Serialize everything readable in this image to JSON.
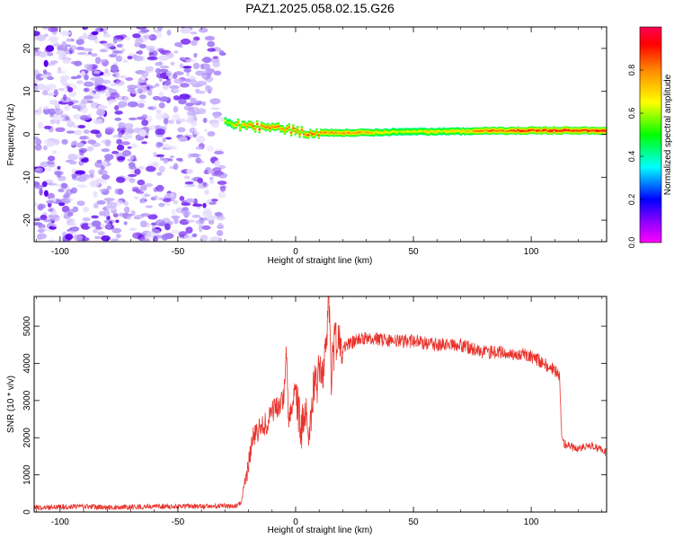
{
  "title": "PAZ1.2025.058.02.15.G26",
  "colors": {
    "snr_line": "#e8332c",
    "noise_scatter": [
      "#5a00ee",
      "#7d2ff2",
      "#a27cf5",
      "#c6b0fa",
      "#e6dcfd"
    ],
    "axis": "#000000"
  },
  "colorbar": {
    "label": "Normalized spectral amplitude",
    "ticks": [
      "0.0",
      "0.2",
      "0.4",
      "0.6",
      "0.8"
    ],
    "tick_values": [
      0.0,
      0.2,
      0.4,
      0.6,
      0.8
    ],
    "range": [
      0,
      1
    ],
    "colormap": "rainbow (magenta-blue-cyan-green-yellow-red)"
  },
  "chart_data": [
    {
      "type": "heatmap",
      "title": "PAZ1.2025.058.02.15.G26",
      "xlabel": "Height of straight line (km)",
      "ylabel": "Frequency (Hz)",
      "xlim": [
        -111,
        132
      ],
      "ylim": [
        -25,
        25
      ],
      "x_ticks": [
        -100,
        -50,
        0,
        50,
        100
      ],
      "x_tick_labels": [
        "-100",
        "-50",
        "0",
        "50",
        "100"
      ],
      "y_ticks": [
        -20,
        -10,
        0,
        10,
        20
      ],
      "y_tick_labels": [
        "-20",
        "-10",
        "0",
        "10",
        "20"
      ],
      "noise_region_x": [
        -111,
        -30
      ],
      "signal_ridge": {
        "x": [
          -30,
          -25,
          -20,
          -15,
          -10,
          -5,
          0,
          5,
          10,
          20,
          30,
          40,
          50,
          60,
          70,
          80,
          90,
          100,
          110,
          120,
          132
        ],
        "frequency": [
          2.5,
          2.3,
          2.0,
          1.8,
          1.2,
          1.5,
          0.8,
          0.5,
          0.4,
          0.3,
          0.4,
          0.5,
          0.6,
          0.6,
          0.7,
          0.8,
          0.8,
          0.9,
          0.9,
          0.9,
          0.9
        ],
        "amplitude": [
          0.65,
          0.8,
          0.85,
          0.9,
          0.9,
          0.85,
          0.9,
          0.9,
          0.85,
          0.85,
          0.8,
          0.7,
          0.7,
          0.72,
          0.75,
          0.88,
          0.9,
          0.95,
          0.98,
          0.98,
          0.98
        ]
      }
    },
    {
      "type": "line",
      "xlabel": "Height of straight line (km)",
      "ylabel": "SNR (10 * v/v)",
      "xlim": [
        -111,
        132
      ],
      "ylim": [
        0,
        5800
      ],
      "x_ticks": [
        -100,
        -50,
        0,
        50,
        100
      ],
      "x_tick_labels": [
        "-100",
        "-50",
        "0",
        "50",
        "100"
      ],
      "y_ticks": [
        0,
        1000,
        2000,
        3000,
        4000,
        5000
      ],
      "y_tick_labels": [
        "0",
        "1000",
        "2000",
        "3000",
        "4000",
        "5000"
      ],
      "series": [
        {
          "x": [
            -111,
            -100,
            -90,
            -80,
            -70,
            -60,
            -50,
            -40,
            -30,
            -25,
            -23,
            -22,
            -20,
            -18,
            -15,
            -12,
            -10,
            -8,
            -5,
            -4,
            -3,
            -1,
            0,
            2,
            4,
            6,
            8,
            10,
            12,
            13,
            14,
            15,
            16,
            17,
            18,
            20,
            25,
            30,
            40,
            50,
            60,
            70,
            80,
            90,
            100,
            105,
            110,
            112,
            113,
            115,
            120,
            125,
            132
          ],
          "y": [
            120,
            140,
            150,
            130,
            140,
            150,
            160,
            150,
            170,
            160,
            250,
            700,
            1300,
            2000,
            2300,
            2400,
            2700,
            2800,
            3100,
            4500,
            2500,
            3100,
            3300,
            2200,
            2500,
            2400,
            3500,
            3600,
            3900,
            4300,
            5900,
            3600,
            4400,
            4600,
            4500,
            4400,
            4600,
            4700,
            4600,
            4600,
            4500,
            4500,
            4300,
            4300,
            4200,
            4000,
            3800,
            3700,
            1900,
            1800,
            1700,
            1800,
            1600
          ]
        }
      ]
    }
  ]
}
